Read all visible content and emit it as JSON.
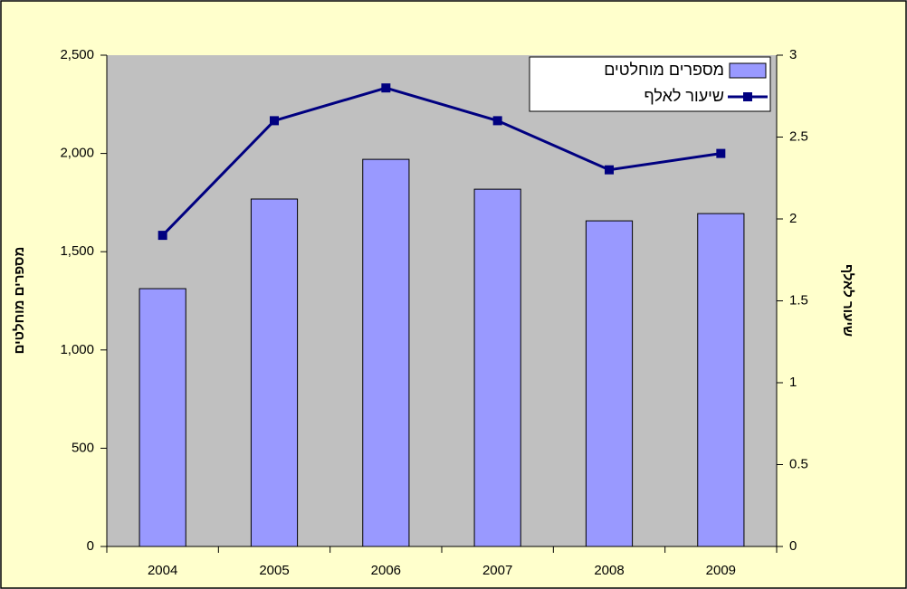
{
  "chart_data": {
    "type": "bar_line",
    "categories": [
      "2004",
      "2005",
      "2006",
      "2007",
      "2008",
      "2009"
    ],
    "series": [
      {
        "name": "מספרים מוחלטים",
        "type": "bar",
        "color": "#9999ff",
        "values": [
          1312,
          1768,
          1970,
          1818,
          1657,
          1694
        ]
      },
      {
        "name": "שיעור לאלף",
        "type": "line",
        "axis": "y2",
        "color": "#000080",
        "values": [
          1.9,
          2.6,
          2.8,
          2.6,
          2.3,
          2.4
        ]
      }
    ],
    "ylabel": "מספרים מוחלטים",
    "y2label": "שיעור לאלף",
    "ylim": [
      0,
      2500
    ],
    "yticks": [
      0,
      500,
      {
        "value": 1000,
        "label": "1,000"
      },
      {
        "value": 1500,
        "label": "1,500"
      },
      {
        "value": 2000,
        "label": "2,000"
      },
      {
        "value": 2500,
        "label": "2,500"
      }
    ],
    "y2lim": [
      0,
      3
    ],
    "y2ticks": [
      0,
      0.5,
      1,
      1.5,
      2,
      2.5,
      3
    ],
    "legend": "top-right",
    "grid": false
  }
}
